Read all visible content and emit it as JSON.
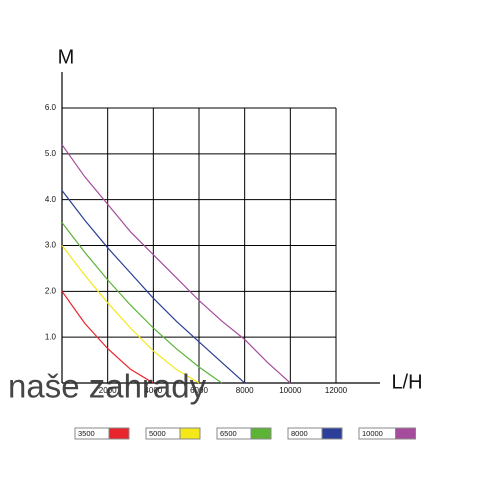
{
  "chart_data": {
    "type": "line",
    "y_label": "M",
    "x_label": "L/H",
    "watermark": "naše zahrady",
    "x": [
      0,
      1000,
      2000,
      3000,
      4000,
      5000,
      6000,
      7000,
      8000,
      9000,
      10000
    ],
    "series": [
      {
        "name": "3500",
        "color": "#e8242c",
        "values": [
          2.0,
          1.3,
          0.75,
          0.3,
          0,
          null,
          null,
          null,
          null,
          null,
          null
        ]
      },
      {
        "name": "5000",
        "color": "#f4e81a",
        "values": [
          3.0,
          2.35,
          1.75,
          1.2,
          0.7,
          0.3,
          0,
          null,
          null,
          null,
          null
        ]
      },
      {
        "name": "6500",
        "color": "#5cb335",
        "values": [
          3.5,
          2.85,
          2.25,
          1.7,
          1.2,
          0.75,
          0.35,
          0,
          null,
          null,
          null
        ]
      },
      {
        "name": "8000",
        "color": "#2b3f98",
        "values": [
          4.2,
          3.55,
          2.95,
          2.4,
          1.85,
          1.35,
          0.9,
          0.45,
          0,
          null,
          null
        ]
      },
      {
        "name": "10000",
        "color": "#a64c9c",
        "values": [
          5.2,
          4.5,
          3.9,
          3.3,
          2.8,
          2.3,
          1.8,
          1.35,
          0.95,
          0.45,
          0
        ]
      }
    ],
    "xlim": [
      0,
      12000
    ],
    "xticks": [
      2000,
      4000,
      6000,
      8000,
      10000,
      12000
    ],
    "ylim": [
      0,
      6
    ],
    "yticks": [
      {
        "value": 1,
        "label": "1.0"
      },
      {
        "value": 2,
        "label": "2.0"
      },
      {
        "value": 3,
        "label": "3.0"
      },
      {
        "value": 4,
        "label": "4.0"
      },
      {
        "value": 5,
        "label": "5.0"
      },
      {
        "value": 6,
        "label": "6.0"
      }
    ],
    "grid": true
  }
}
